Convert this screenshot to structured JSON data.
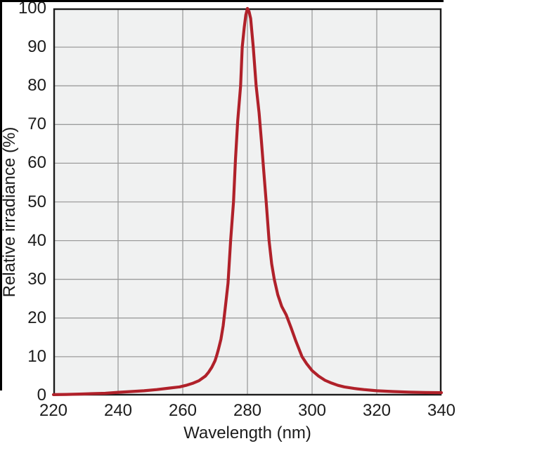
{
  "figure": {
    "background": "#ffffff",
    "plot_background": "#f0f1f1",
    "border_color": "#1b1b1b",
    "grid_color": "#9c9c9c",
    "text_color": "#1c1c1c",
    "edge_color": "#000000",
    "curve_color": "#b0212a"
  },
  "chart_data": {
    "type": "line",
    "title": "",
    "xlabel": "Wavelength (nm)",
    "ylabel": "Relative irradiance (%)",
    "xlim": [
      220,
      340
    ],
    "ylim": [
      0,
      100
    ],
    "x_ticks": [
      220,
      240,
      260,
      280,
      300,
      320,
      340
    ],
    "y_ticks": [
      0,
      10,
      20,
      30,
      40,
      50,
      60,
      70,
      80,
      90,
      100
    ],
    "grid": true,
    "legend": false,
    "peak": {
      "wavelength_nm": 280,
      "relative_irradiance_pct": 100
    },
    "series": [
      {
        "color": "#b0212a",
        "points": [
          [
            220,
            0.2
          ],
          [
            224,
            0.25
          ],
          [
            228,
            0.35
          ],
          [
            232,
            0.45
          ],
          [
            236,
            0.55
          ],
          [
            240,
            0.8
          ],
          [
            244,
            1.0
          ],
          [
            248,
            1.2
          ],
          [
            252,
            1.5
          ],
          [
            256,
            1.9
          ],
          [
            259,
            2.2
          ],
          [
            261,
            2.6
          ],
          [
            263,
            3.1
          ],
          [
            265,
            3.8
          ],
          [
            267,
            5.0
          ],
          [
            268,
            6.0
          ],
          [
            269,
            7.3
          ],
          [
            270,
            9.0
          ],
          [
            270.5,
            10.3
          ],
          [
            271,
            11.8
          ],
          [
            271.8,
            14.5
          ],
          [
            272.5,
            18
          ],
          [
            273.2,
            23
          ],
          [
            274,
            29
          ],
          [
            274.8,
            40
          ],
          [
            275.7,
            50
          ],
          [
            276.3,
            61
          ],
          [
            277,
            71
          ],
          [
            277.9,
            80
          ],
          [
            278.4,
            90
          ],
          [
            279,
            95
          ],
          [
            279.5,
            98.3
          ],
          [
            280,
            100
          ],
          [
            280.5,
            99.2
          ],
          [
            281,
            97.4
          ],
          [
            281.8,
            90
          ],
          [
            282.7,
            80
          ],
          [
            283.6,
            73
          ],
          [
            284.3,
            66
          ],
          [
            285,
            58.5
          ],
          [
            285.8,
            50
          ],
          [
            286.7,
            40
          ],
          [
            287.5,
            34
          ],
          [
            288.3,
            30
          ],
          [
            289.4,
            26
          ],
          [
            290.6,
            23
          ],
          [
            292,
            20.8
          ],
          [
            293.5,
            17.5
          ],
          [
            295,
            14
          ],
          [
            296.9,
            10
          ],
          [
            298.3,
            8.2
          ],
          [
            300,
            6.4
          ],
          [
            302,
            5.0
          ],
          [
            304,
            3.9
          ],
          [
            306,
            3.2
          ],
          [
            308,
            2.6
          ],
          [
            310,
            2.2
          ],
          [
            313,
            1.8
          ],
          [
            316,
            1.5
          ],
          [
            320,
            1.2
          ],
          [
            325,
            1.0
          ],
          [
            330,
            0.85
          ],
          [
            335,
            0.75
          ],
          [
            340,
            0.7
          ]
        ]
      }
    ]
  }
}
